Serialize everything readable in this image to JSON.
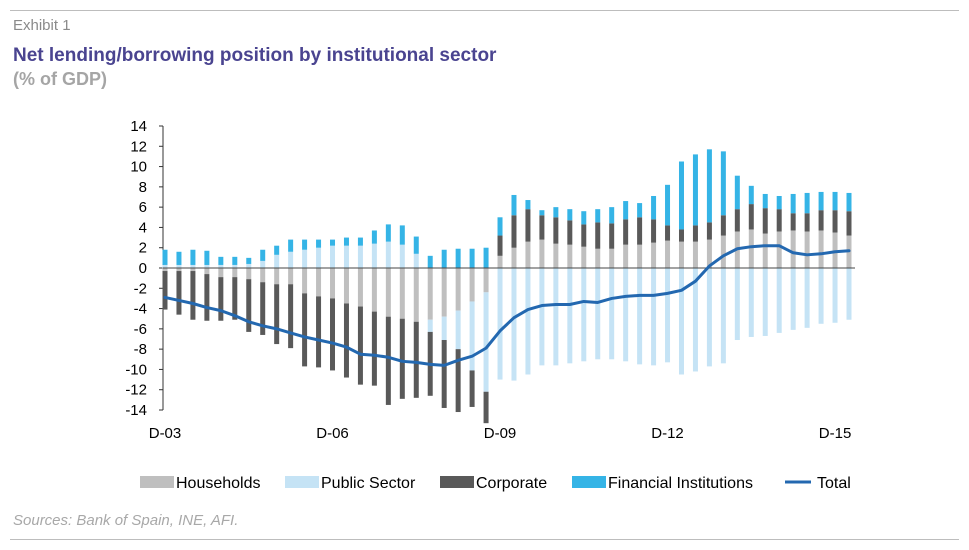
{
  "header": {
    "exhibit": "Exhibit 1",
    "title": "Net lending/borrowing position by institutional sector",
    "subtitle": "(% of GDP)"
  },
  "footer": {
    "source": "Sources: Bank of Spain, INE, AFI."
  },
  "chart_data": {
    "type": "bar",
    "stacked": true,
    "overlay_line": "Total",
    "ylim": [
      -14,
      14
    ],
    "yticks": [
      14,
      12,
      10,
      8,
      6,
      4,
      2,
      0,
      -2,
      -4,
      -6,
      -8,
      -10,
      -12,
      -14
    ],
    "x_tick_labels": [
      {
        "label": "D-03",
        "index": 0
      },
      {
        "label": "D-06",
        "index": 12
      },
      {
        "label": "D-09",
        "index": 24
      },
      {
        "label": "D-12",
        "index": 36
      },
      {
        "label": "D-15",
        "index": 48
      }
    ],
    "legend_position": "bottom",
    "colors": {
      "Households": "#bfbfbf",
      "Public Sector": "#c5e3f5",
      "Corporate": "#595959",
      "Financial Institutions": "#35b4e6",
      "Total": "#2368b0"
    },
    "series": [
      {
        "name": "Households",
        "kind": "bar",
        "values": [
          -0.3,
          -0.3,
          -0.3,
          -0.6,
          -0.9,
          -0.9,
          -1.1,
          -1.4,
          -1.6,
          -1.6,
          -2.5,
          -2.8,
          -3.0,
          -3.5,
          -3.8,
          -4.3,
          -4.8,
          -5.0,
          -5.3,
          -5.1,
          -4.8,
          -4.2,
          -3.3,
          -2.4,
          1.2,
          2.0,
          2.6,
          2.8,
          2.4,
          2.3,
          2.1,
          1.9,
          1.9,
          2.3,
          2.3,
          2.5,
          2.7,
          2.6,
          2.6,
          2.8,
          3.2,
          3.6,
          3.8,
          3.4,
          3.6,
          3.7,
          3.6,
          3.7,
          3.5,
          3.2
        ]
      },
      {
        "name": "Public Sector",
        "kind": "bar",
        "values": [
          0.3,
          0.3,
          0.3,
          0.3,
          0.3,
          0.3,
          0.4,
          0.7,
          1.3,
          1.6,
          1.8,
          2.0,
          2.2,
          2.2,
          2.2,
          2.4,
          2.6,
          2.3,
          1.4,
          -1.2,
          -2.3,
          -3.8,
          -6.8,
          -9.8,
          -11.0,
          -11.1,
          -10.5,
          -9.6,
          -9.6,
          -9.4,
          -9.2,
          -9.0,
          -9.0,
          -9.2,
          -9.5,
          -9.6,
          -9.3,
          -10.5,
          -10.2,
          -9.7,
          -9.4,
          -7.1,
          -6.8,
          -6.7,
          -6.4,
          -6.1,
          -5.9,
          -5.5,
          -5.4,
          -5.1
        ]
      },
      {
        "name": "Corporate",
        "kind": "bar",
        "values": [
          -3.8,
          -4.3,
          -4.8,
          -4.6,
          -4.3,
          -4.2,
          -5.2,
          -5.2,
          -5.9,
          -6.3,
          -7.2,
          -7.0,
          -7.1,
          -7.3,
          -7.7,
          -7.3,
          -8.7,
          -7.9,
          -7.5,
          -6.3,
          -6.7,
          -6.2,
          -3.6,
          -3.1,
          2.0,
          3.2,
          3.2,
          2.4,
          2.6,
          2.4,
          2.2,
          2.6,
          2.5,
          2.5,
          2.7,
          2.3,
          1.5,
          1.2,
          1.6,
          1.7,
          2.0,
          2.2,
          2.5,
          2.5,
          2.2,
          1.7,
          1.8,
          2.0,
          2.2,
          2.4
        ]
      },
      {
        "name": "Financial Institutions",
        "kind": "bar",
        "values": [
          1.5,
          1.3,
          1.5,
          1.4,
          0.8,
          0.8,
          0.6,
          1.1,
          0.9,
          1.2,
          1.0,
          0.8,
          0.6,
          0.8,
          0.8,
          1.3,
          1.7,
          1.9,
          1.7,
          1.2,
          1.8,
          1.9,
          1.9,
          2.0,
          1.8,
          2.0,
          0.9,
          0.5,
          1.0,
          1.1,
          1.3,
          1.3,
          1.6,
          1.8,
          1.4,
          2.3,
          4.0,
          6.7,
          7.0,
          7.2,
          6.3,
          3.3,
          1.8,
          1.4,
          1.3,
          1.9,
          2.0,
          1.8,
          1.8,
          1.8
        ]
      },
      {
        "name": "Total",
        "kind": "line",
        "values": [
          -2.9,
          -3.2,
          -3.5,
          -3.9,
          -4.2,
          -4.7,
          -5.3,
          -5.7,
          -6.0,
          -6.4,
          -6.8,
          -7.1,
          -7.4,
          -7.8,
          -8.5,
          -8.6,
          -8.8,
          -9.2,
          -9.3,
          -9.5,
          -9.6,
          -9.1,
          -8.7,
          -7.9,
          -6.2,
          -4.9,
          -4.1,
          -3.7,
          -3.6,
          -3.6,
          -3.3,
          -3.4,
          -3.0,
          -2.8,
          -2.7,
          -2.7,
          -2.5,
          -2.2,
          -1.3,
          0.2,
          1.2,
          1.9,
          2.1,
          2.2,
          2.2,
          1.5,
          1.3,
          1.4,
          1.6,
          1.7
        ]
      }
    ]
  }
}
